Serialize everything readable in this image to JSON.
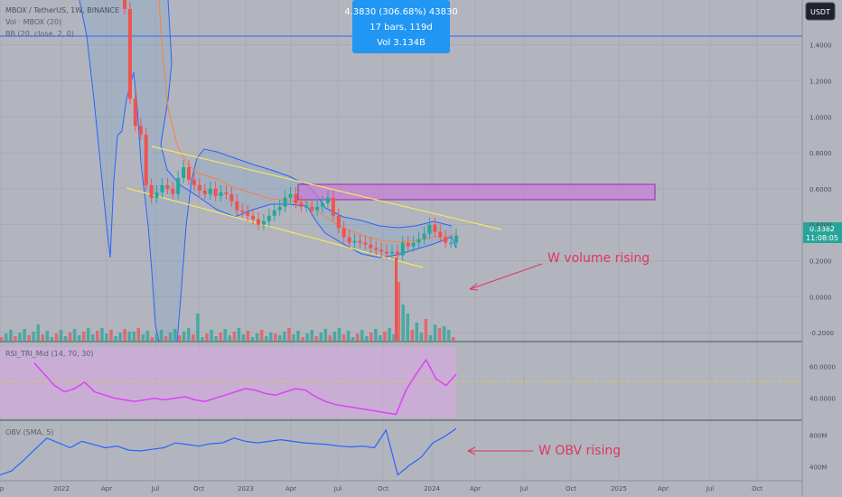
{
  "header": {
    "symbol": "MBOX / TetherUS, 1W, BINANCE",
    "vol_label": "Vol · MBOX (20)",
    "bb_label": "BB (20, close, 2, 0)"
  },
  "currency_button": "USDT",
  "measure_tooltip": {
    "line1": "4.3830 (306.68%) 43830",
    "line2": "17 bars, 119d",
    "line3": "Vol 3.134B"
  },
  "price_badge": {
    "price": "0.3382",
    "timer": "11:08:05"
  },
  "annotations": {
    "volume": "W volume rising",
    "obv": "W OBV rising"
  },
  "colors": {
    "up": "#26a69a",
    "down": "#ef5350",
    "bb_band": "#2962ff",
    "ema": "#ff7f3f",
    "channel": "#f5e663",
    "zone_fill": "#c77dd6",
    "rsi_line": "#e040fb",
    "rsi_fill": "#d9a8e3",
    "obv_line": "#2962ff",
    "annotation": "#e03561",
    "tooltip_bg": "#2196f3",
    "grid": "#a3a6ae"
  },
  "chart_data": [
    {
      "type": "candlestick",
      "title": "MBOX / TetherUS, 1W, BINANCE",
      "x_ticks": [
        "ep",
        "2022",
        "Apr",
        "Jul",
        "Oct",
        "2023",
        "Apr",
        "Jul",
        "Oct",
        "2024",
        "Apr",
        "Jul",
        "Oct",
        "2025",
        "Apr",
        "Jul",
        "Oct"
      ],
      "y_ticks": [
        "1.4000",
        "1.2000",
        "1.0000",
        "0.8000",
        "0.6000",
        "0.4000",
        "0.2000",
        "0.0000",
        "-0.2000"
      ],
      "ylim": [
        -0.25,
        1.65
      ],
      "last_price": 0.3382,
      "candles_close_approx": [
        1.6,
        1.1,
        0.95,
        0.9,
        0.62,
        0.55,
        0.58,
        0.62,
        0.6,
        0.57,
        0.66,
        0.72,
        0.65,
        0.62,
        0.59,
        0.57,
        0.6,
        0.56,
        0.58,
        0.57,
        0.53,
        0.48,
        0.47,
        0.45,
        0.43,
        0.4,
        0.42,
        0.45,
        0.48,
        0.5,
        0.55,
        0.57,
        0.52,
        0.5,
        0.5,
        0.48,
        0.5,
        0.52,
        0.55,
        0.45,
        0.38,
        0.33,
        0.3,
        0.31,
        0.3,
        0.29,
        0.27,
        0.26,
        0.25,
        0.24,
        0.25,
        0.23,
        0.3,
        0.28,
        0.3,
        0.32,
        0.35,
        0.4,
        0.36,
        0.33,
        0.3,
        0.3,
        0.34
      ],
      "resistance_zone": [
        0.5,
        0.59
      ],
      "annotation": "W volume rising"
    },
    {
      "type": "line",
      "title": "RSI_TRI_Mid (14, 70, 30)",
      "y_ticks": [
        "60.0000",
        "40.0000"
      ],
      "ylim": [
        28,
        72
      ],
      "midline": 50,
      "values": [
        62,
        55,
        48,
        44,
        46,
        50,
        44,
        42,
        40,
        39,
        38,
        39,
        40,
        39,
        40,
        41,
        39,
        38,
        40,
        42,
        44,
        46,
        45,
        43,
        42,
        44,
        46,
        45,
        41,
        38,
        36,
        35,
        34,
        33,
        32,
        31,
        30,
        45,
        55,
        64,
        52,
        48,
        55
      ]
    },
    {
      "type": "line",
      "title": "OBV (SMA, 5)",
      "y_ticks": [
        "800M",
        "400M"
      ],
      "ylim": [
        250,
        950
      ],
      "values": [
        300,
        350,
        480,
        620,
        760,
        700,
        640,
        720,
        680,
        640,
        660,
        610,
        600,
        620,
        640,
        700,
        680,
        660,
        690,
        700,
        760,
        720,
        700,
        720,
        740,
        720,
        700,
        690,
        680,
        660,
        650,
        660,
        640,
        860,
        300,
        420,
        520,
        700,
        780,
        880
      ]
    }
  ]
}
